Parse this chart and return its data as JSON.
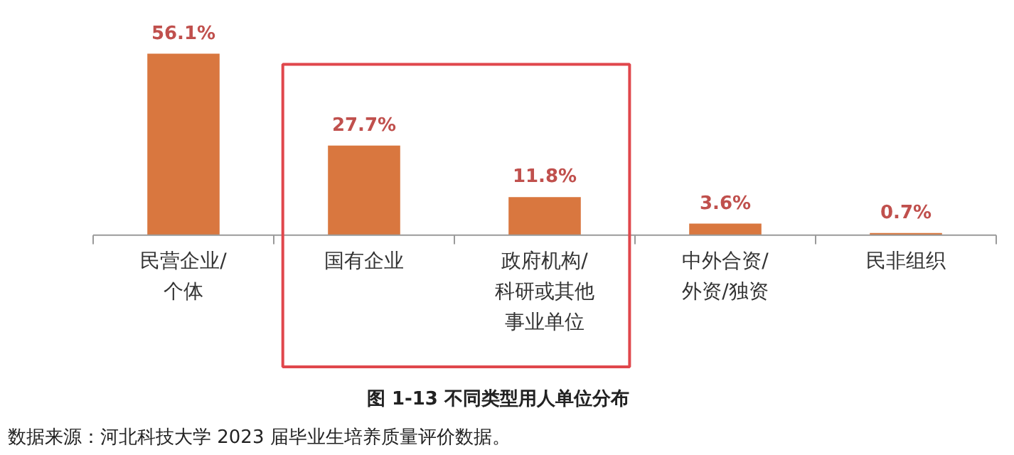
{
  "chart_data": {
    "type": "bar",
    "title": "图 1-13    不同类型用人单位分布",
    "categories": [
      "民营企业/个体",
      "国有企业",
      "政府机构/科研或其他事业单位",
      "中外合资/外资/独资",
      "民非组织"
    ],
    "values": [
      56.1,
      27.7,
      11.8,
      3.6,
      0.7
    ],
    "value_labels": [
      "56.1%",
      "27.7%",
      "11.8%",
      "3.6%",
      "0.7%"
    ],
    "color": "#d9773f",
    "annotations": [
      "数据来源：河北科技大学 2023 届毕业生培养质量评价数据。"
    ],
    "grid": false
  }
}
